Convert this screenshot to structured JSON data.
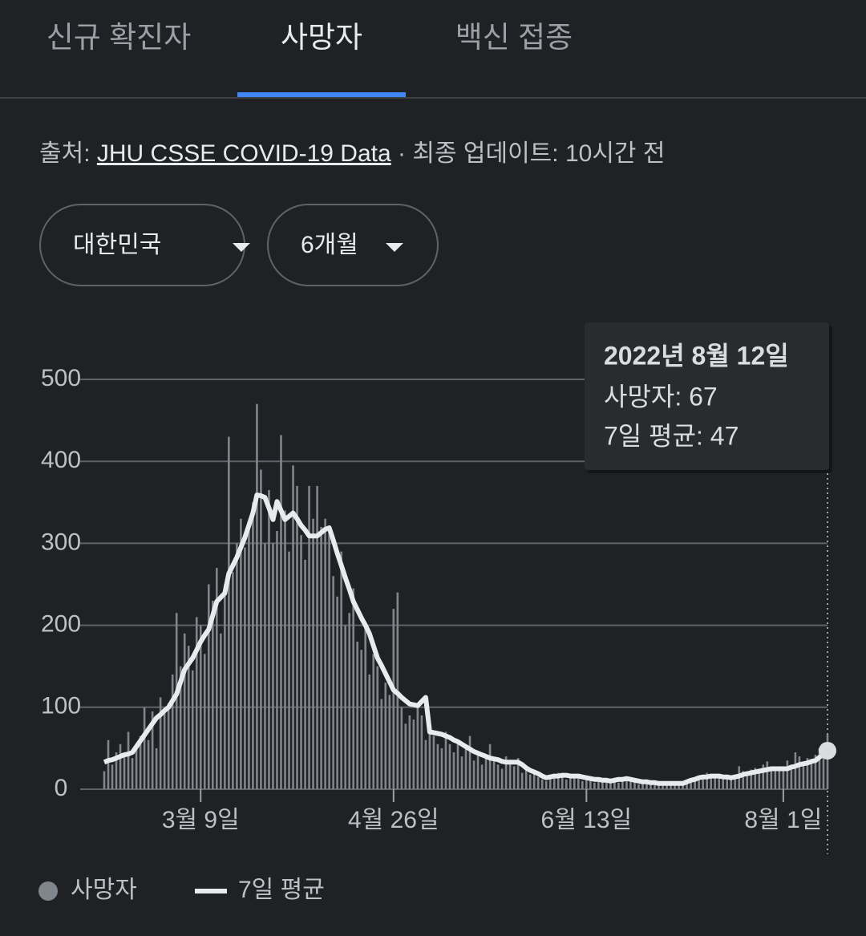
{
  "tabs": [
    "신규 확진자",
    "사망자",
    "백신 접종"
  ],
  "active_tab": 1,
  "source": {
    "prefix": "출처:",
    "link": "JHU CSSE COVID-19 Data",
    "suffix": "· 최종 업데이트: 10시간 전"
  },
  "filters": [
    "대한민국",
    "6개월"
  ],
  "chart_data": {
    "type": "bar",
    "grid": true,
    "x": [
      "2022-02-13",
      "2022-02-14",
      "2022-02-15",
      "2022-02-16",
      "2022-02-17",
      "2022-02-18",
      "2022-02-19",
      "2022-02-20",
      "2022-02-21",
      "2022-02-22",
      "2022-02-23",
      "2022-02-24",
      "2022-02-25",
      "2022-02-26",
      "2022-02-27",
      "2022-02-28",
      "2022-03-01",
      "2022-03-02",
      "2022-03-03",
      "2022-03-04",
      "2022-03-05",
      "2022-03-06",
      "2022-03-07",
      "2022-03-08",
      "2022-03-09",
      "2022-03-10",
      "2022-03-11",
      "2022-03-12",
      "2022-03-13",
      "2022-03-14",
      "2022-03-15",
      "2022-03-16",
      "2022-03-17",
      "2022-03-18",
      "2022-03-19",
      "2022-03-20",
      "2022-03-21",
      "2022-03-22",
      "2022-03-23",
      "2022-03-24",
      "2022-03-25",
      "2022-03-26",
      "2022-03-27",
      "2022-03-28",
      "2022-03-29",
      "2022-03-30",
      "2022-03-31",
      "2022-04-01",
      "2022-04-02",
      "2022-04-03",
      "2022-04-04",
      "2022-04-05",
      "2022-04-06",
      "2022-04-07",
      "2022-04-08",
      "2022-04-09",
      "2022-04-10",
      "2022-04-11",
      "2022-04-12",
      "2022-04-13",
      "2022-04-14",
      "2022-04-15",
      "2022-04-16",
      "2022-04-17",
      "2022-04-18",
      "2022-04-19",
      "2022-04-20",
      "2022-04-21",
      "2022-04-22",
      "2022-04-23",
      "2022-04-24",
      "2022-04-25",
      "2022-04-26",
      "2022-04-27",
      "2022-04-28",
      "2022-04-29",
      "2022-04-30",
      "2022-05-01",
      "2022-05-02",
      "2022-05-03",
      "2022-05-04",
      "2022-05-05",
      "2022-05-06",
      "2022-05-07",
      "2022-05-08",
      "2022-05-09",
      "2022-05-10",
      "2022-05-11",
      "2022-05-12",
      "2022-05-13",
      "2022-05-14",
      "2022-05-15",
      "2022-05-16",
      "2022-05-17",
      "2022-05-18",
      "2022-05-19",
      "2022-05-20",
      "2022-05-21",
      "2022-05-22",
      "2022-05-23",
      "2022-05-24",
      "2022-05-25",
      "2022-05-26",
      "2022-05-27",
      "2022-05-28",
      "2022-05-29",
      "2022-05-30",
      "2022-05-31",
      "2022-06-01",
      "2022-06-02",
      "2022-06-03",
      "2022-06-04",
      "2022-06-05",
      "2022-06-06",
      "2022-06-07",
      "2022-06-08",
      "2022-06-09",
      "2022-06-10",
      "2022-06-11",
      "2022-06-12",
      "2022-06-13",
      "2022-06-14",
      "2022-06-15",
      "2022-06-16",
      "2022-06-17",
      "2022-06-18",
      "2022-06-19",
      "2022-06-20",
      "2022-06-21",
      "2022-06-22",
      "2022-06-23",
      "2022-06-24",
      "2022-06-25",
      "2022-06-26",
      "2022-06-27",
      "2022-06-28",
      "2022-06-29",
      "2022-06-30",
      "2022-07-01",
      "2022-07-02",
      "2022-07-03",
      "2022-07-04",
      "2022-07-05",
      "2022-07-06",
      "2022-07-07",
      "2022-07-08",
      "2022-07-09",
      "2022-07-10",
      "2022-07-11",
      "2022-07-12",
      "2022-07-13",
      "2022-07-14",
      "2022-07-15",
      "2022-07-16",
      "2022-07-17",
      "2022-07-18",
      "2022-07-19",
      "2022-07-20",
      "2022-07-21",
      "2022-07-22",
      "2022-07-23",
      "2022-07-24",
      "2022-07-25",
      "2022-07-26",
      "2022-07-27",
      "2022-07-28",
      "2022-07-29",
      "2022-07-30",
      "2022-07-31",
      "2022-08-01",
      "2022-08-02",
      "2022-08-03",
      "2022-08-04",
      "2022-08-05",
      "2022-08-06",
      "2022-08-07",
      "2022-08-08",
      "2022-08-09",
      "2022-08-10",
      "2022-08-11",
      "2022-08-12"
    ],
    "xlim": [
      "2022-02-13",
      "2022-08-12"
    ],
    "xticks": [
      {
        "value": "2022-03-09",
        "label": "3월 9일"
      },
      {
        "value": "2022-04-26",
        "label": "4월 26일"
      },
      {
        "value": "2022-06-13",
        "label": "6월 13일"
      },
      {
        "value": "2022-08-01",
        "label": "8월 1일"
      }
    ],
    "ylim": [
      0,
      500
    ],
    "yticks": [
      0,
      100,
      200,
      300,
      400,
      500
    ],
    "series": [
      {
        "name": "사망자",
        "type": "bar",
        "color": "#80868b",
        "values": [
          22,
          60,
          30,
          45,
          55,
          42,
          70,
          38,
          55,
          65,
          100,
          60,
          95,
          50,
          112,
          95,
          105,
          140,
          215,
          150,
          190,
          175,
          145,
          210,
          200,
          165,
          250,
          230,
          270,
          190,
          250,
          430,
          265,
          300,
          330,
          295,
          320,
          350,
          470,
          390,
          300,
          365,
          300,
          315,
          432,
          340,
          290,
          395,
          370,
          310,
          280,
          370,
          330,
          370,
          320,
          330,
          320,
          260,
          235,
          290,
          200,
          215,
          245,
          180,
          170,
          200,
          140,
          165,
          150,
          110,
          130,
          115,
          220,
          240,
          100,
          80,
          90,
          85,
          100,
          90,
          60,
          75,
          65,
          55,
          50,
          70,
          55,
          45,
          60,
          40,
          50,
          65,
          35,
          45,
          30,
          40,
          55,
          35,
          30,
          25,
          40,
          35,
          28,
          38,
          20,
          25,
          18,
          22,
          15,
          12,
          10,
          18,
          14,
          20,
          16,
          12,
          18,
          15,
          14,
          10,
          16,
          12,
          8,
          10,
          12,
          9,
          10,
          14,
          8,
          12,
          15,
          10,
          9,
          6,
          8,
          12,
          7,
          5,
          9,
          6,
          8,
          5,
          7,
          9,
          6,
          10,
          12,
          14,
          11,
          16,
          20,
          14,
          18,
          15,
          12,
          16,
          14,
          18,
          28,
          22,
          17,
          24,
          26,
          20,
          30,
          34,
          25,
          22,
          28,
          24,
          35,
          30,
          45,
          40,
          32,
          38,
          36,
          42,
          50,
          55,
          67
        ]
      },
      {
        "name": "7일 평균",
        "type": "line",
        "color": "#e8eaed",
        "values": [
          33,
          35,
          36,
          38,
          40,
          42,
          43,
          45,
          52,
          59,
          66,
          73,
          80,
          87,
          91,
          96,
          100,
          108,
          116,
          131,
          146,
          153,
          160,
          170,
          180,
          188,
          195,
          212,
          229,
          234,
          239,
          263,
          273,
          283,
          295,
          307,
          322,
          337,
          359,
          358,
          356,
          343,
          329,
          351,
          340,
          329,
          333,
          337,
          330,
          322,
          316,
          309,
          309,
          309,
          313,
          317,
          319,
          304,
          288,
          273,
          258,
          244,
          229,
          219,
          209,
          200,
          190,
          175,
          160,
          151,
          141,
          131,
          121,
          117,
          112,
          108,
          104,
          103,
          102,
          107,
          112,
          70,
          69,
          68,
          67,
          65,
          63,
          60,
          58,
          55,
          52,
          49,
          46,
          44,
          42,
          40,
          38,
          37,
          36,
          34,
          33,
          33,
          33,
          33,
          30,
          26,
          23,
          21,
          19,
          16,
          14,
          15,
          16,
          16,
          17,
          17,
          16,
          16,
          16,
          15,
          14,
          13,
          12,
          12,
          11,
          11,
          10,
          11,
          12,
          12,
          13,
          12,
          11,
          10,
          9,
          9,
          8,
          8,
          7,
          7,
          7,
          7,
          7,
          7,
          7,
          9,
          11,
          12,
          14,
          15,
          15,
          16,
          16,
          16,
          15,
          15,
          14,
          15,
          16,
          18,
          19,
          20,
          21,
          22,
          23,
          24,
          25,
          25,
          25,
          25,
          25,
          27,
          28,
          30,
          31,
          32,
          34,
          35,
          39,
          43,
          47
        ]
      }
    ],
    "tooltip": {
      "title": "2022년 8월 12일",
      "lines": [
        "사망자: 67",
        "7일 평균: 47"
      ]
    }
  }
}
